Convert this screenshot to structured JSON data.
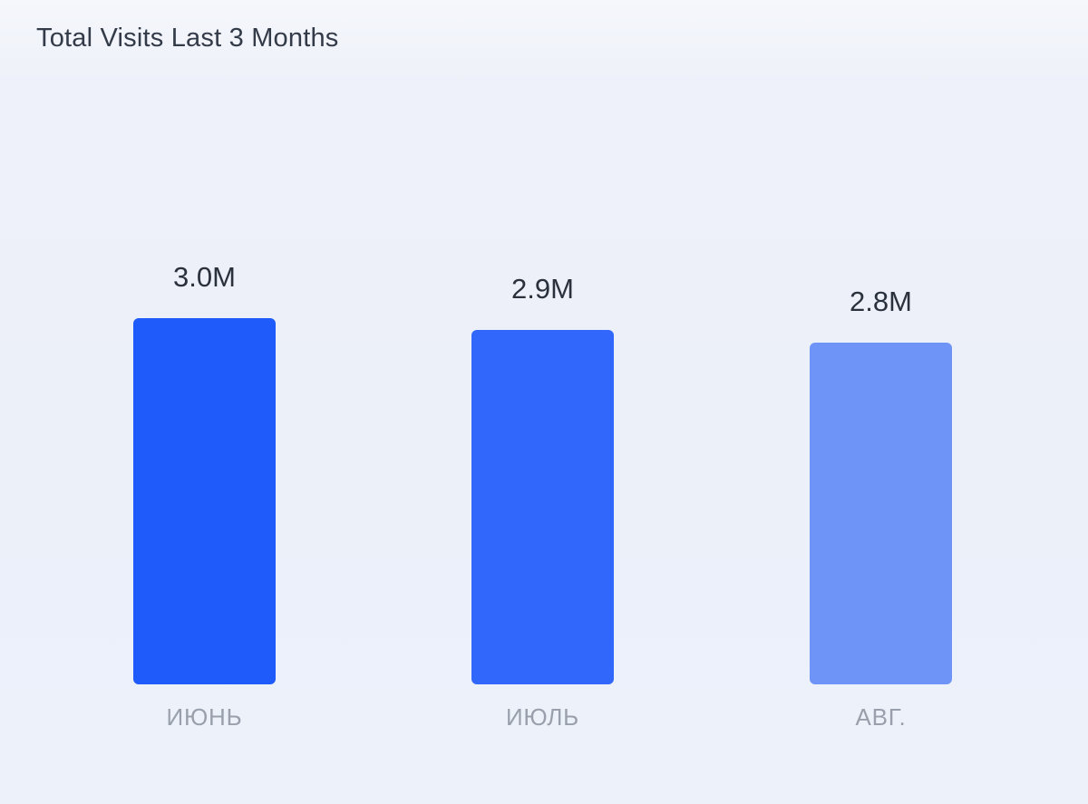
{
  "page": {
    "title": "Total Visits Last 3 Months"
  },
  "colors": {
    "background": "#edf0f9",
    "title_text": "#333b49",
    "value_text": "#2b313c",
    "category_text": "#99a0ac"
  },
  "chart_data": {
    "type": "bar",
    "title": "Total Visits Last 3 Months",
    "categories": [
      "ИЮНЬ",
      "ИЮЛЬ",
      "АВГ."
    ],
    "values": [
      3.0,
      2.9,
      2.8
    ],
    "value_labels": [
      "3.0M",
      "2.9M",
      "2.8M"
    ],
    "xlabel": "",
    "ylabel": "",
    "ylim": [
      0,
      3.0
    ],
    "grid": false,
    "legend": "none",
    "bar_colors": [
      "#1f5bfb",
      "#3168fb",
      "#6e94f8"
    ]
  }
}
